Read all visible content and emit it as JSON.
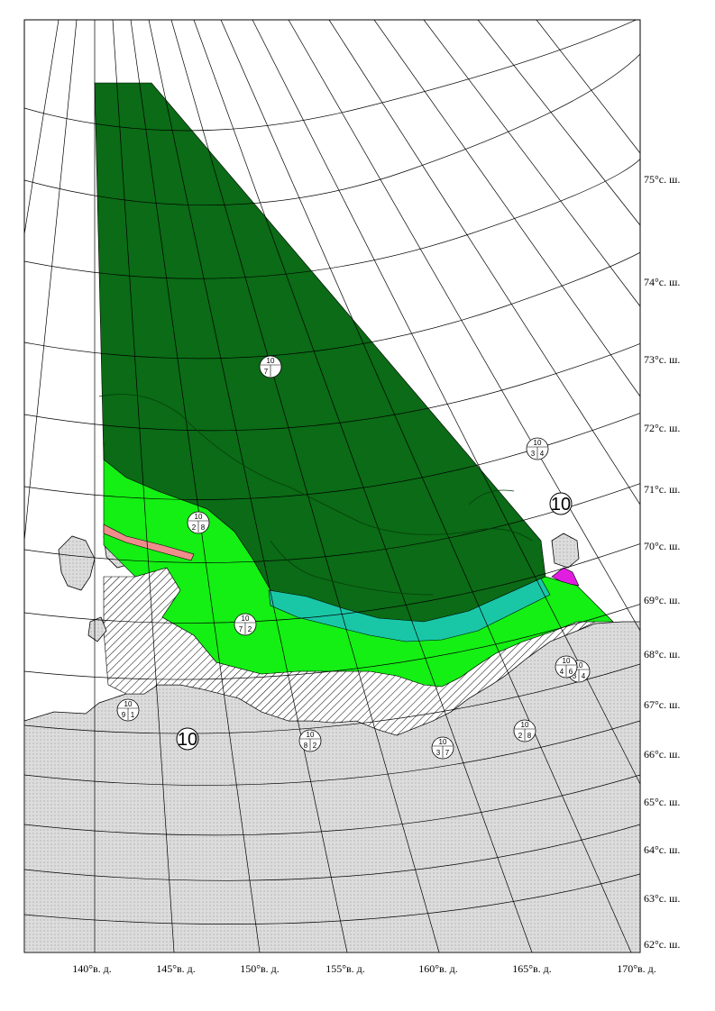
{
  "map": {
    "latitude_labels": [
      "75°с. ш.",
      "74°с. ш.",
      "73°с. ш.",
      "72°с. ш.",
      "71°с. ш.",
      "70°с. ш.",
      "69°с. ш.",
      "68°с. ш.",
      "67°с. ш.",
      "66°с. ш.",
      "65°с. ш.",
      "64°с. ш.",
      "63°с. ш.",
      "62°с. ш."
    ],
    "longitude_labels": [
      "140°в. д.",
      "145°в. д.",
      "150°в. д.",
      "155°в. д.",
      "160°в. д.",
      "165°в. д.",
      "170°в. д."
    ],
    "colors": {
      "dark_green": "#0b6b16",
      "bright_green": "#14ef14",
      "teal": "#19c7a7",
      "pink": "#ef8c8c",
      "magenta": "#e01ee0",
      "land": "#d8d8d8",
      "fast_ice_hatch": "#000000",
      "graticule": "#000000"
    },
    "ice_symbols": [
      {
        "top": "10",
        "left": "7",
        "mid": "",
        "right": ""
      },
      {
        "top": "10",
        "left": "3",
        "mid": "",
        "right": "4"
      },
      {
        "top": "10",
        "left": "2",
        "mid": "",
        "right": "8"
      },
      {
        "top": "10",
        "left": "7",
        "mid": "",
        "right": "2"
      },
      {
        "top": "10",
        "left": "3",
        "mid": "",
        "right": "4"
      },
      {
        "top": "10",
        "left": "9",
        "mid": "",
        "right": "1"
      },
      {
        "top": "10",
        "left": "8",
        "mid": "",
        "right": "2"
      },
      {
        "top": "10",
        "left": "3",
        "mid": "",
        "right": "7"
      },
      {
        "top": "10",
        "left": "2",
        "mid": "",
        "right": "8"
      },
      {
        "top": "10",
        "left": "4",
        "mid": "",
        "right": "6"
      }
    ],
    "plain_labels": [
      "10",
      "10"
    ]
  }
}
